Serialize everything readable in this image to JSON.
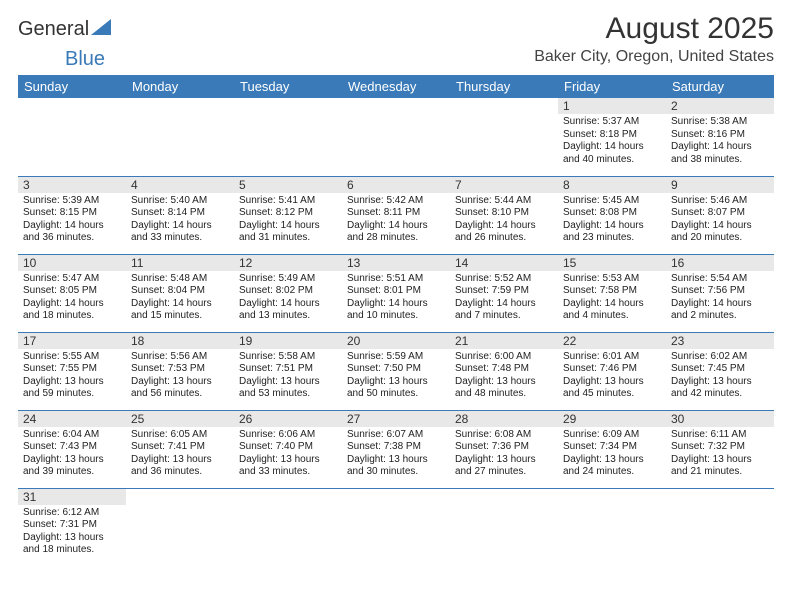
{
  "header": {
    "logo_part1": "General",
    "logo_part2": "Blue",
    "month_title": "August 2025",
    "location": "Baker City, Oregon, United States"
  },
  "colors": {
    "header_bg": "#3a7ab8",
    "header_text": "#ffffff",
    "daynum_bg": "#e8e8e8",
    "row_border": "#3a7ab8"
  },
  "weekdays": [
    "Sunday",
    "Monday",
    "Tuesday",
    "Wednesday",
    "Thursday",
    "Friday",
    "Saturday"
  ],
  "weeks": [
    [
      null,
      null,
      null,
      null,
      null,
      {
        "n": "1",
        "sr": "Sunrise: 5:37 AM",
        "ss": "Sunset: 8:18 PM",
        "dl": "Daylight: 14 hours and 40 minutes."
      },
      {
        "n": "2",
        "sr": "Sunrise: 5:38 AM",
        "ss": "Sunset: 8:16 PM",
        "dl": "Daylight: 14 hours and 38 minutes."
      }
    ],
    [
      {
        "n": "3",
        "sr": "Sunrise: 5:39 AM",
        "ss": "Sunset: 8:15 PM",
        "dl": "Daylight: 14 hours and 36 minutes."
      },
      {
        "n": "4",
        "sr": "Sunrise: 5:40 AM",
        "ss": "Sunset: 8:14 PM",
        "dl": "Daylight: 14 hours and 33 minutes."
      },
      {
        "n": "5",
        "sr": "Sunrise: 5:41 AM",
        "ss": "Sunset: 8:12 PM",
        "dl": "Daylight: 14 hours and 31 minutes."
      },
      {
        "n": "6",
        "sr": "Sunrise: 5:42 AM",
        "ss": "Sunset: 8:11 PM",
        "dl": "Daylight: 14 hours and 28 minutes."
      },
      {
        "n": "7",
        "sr": "Sunrise: 5:44 AM",
        "ss": "Sunset: 8:10 PM",
        "dl": "Daylight: 14 hours and 26 minutes."
      },
      {
        "n": "8",
        "sr": "Sunrise: 5:45 AM",
        "ss": "Sunset: 8:08 PM",
        "dl": "Daylight: 14 hours and 23 minutes."
      },
      {
        "n": "9",
        "sr": "Sunrise: 5:46 AM",
        "ss": "Sunset: 8:07 PM",
        "dl": "Daylight: 14 hours and 20 minutes."
      }
    ],
    [
      {
        "n": "10",
        "sr": "Sunrise: 5:47 AM",
        "ss": "Sunset: 8:05 PM",
        "dl": "Daylight: 14 hours and 18 minutes."
      },
      {
        "n": "11",
        "sr": "Sunrise: 5:48 AM",
        "ss": "Sunset: 8:04 PM",
        "dl": "Daylight: 14 hours and 15 minutes."
      },
      {
        "n": "12",
        "sr": "Sunrise: 5:49 AM",
        "ss": "Sunset: 8:02 PM",
        "dl": "Daylight: 14 hours and 13 minutes."
      },
      {
        "n": "13",
        "sr": "Sunrise: 5:51 AM",
        "ss": "Sunset: 8:01 PM",
        "dl": "Daylight: 14 hours and 10 minutes."
      },
      {
        "n": "14",
        "sr": "Sunrise: 5:52 AM",
        "ss": "Sunset: 7:59 PM",
        "dl": "Daylight: 14 hours and 7 minutes."
      },
      {
        "n": "15",
        "sr": "Sunrise: 5:53 AM",
        "ss": "Sunset: 7:58 PM",
        "dl": "Daylight: 14 hours and 4 minutes."
      },
      {
        "n": "16",
        "sr": "Sunrise: 5:54 AM",
        "ss": "Sunset: 7:56 PM",
        "dl": "Daylight: 14 hours and 2 minutes."
      }
    ],
    [
      {
        "n": "17",
        "sr": "Sunrise: 5:55 AM",
        "ss": "Sunset: 7:55 PM",
        "dl": "Daylight: 13 hours and 59 minutes."
      },
      {
        "n": "18",
        "sr": "Sunrise: 5:56 AM",
        "ss": "Sunset: 7:53 PM",
        "dl": "Daylight: 13 hours and 56 minutes."
      },
      {
        "n": "19",
        "sr": "Sunrise: 5:58 AM",
        "ss": "Sunset: 7:51 PM",
        "dl": "Daylight: 13 hours and 53 minutes."
      },
      {
        "n": "20",
        "sr": "Sunrise: 5:59 AM",
        "ss": "Sunset: 7:50 PM",
        "dl": "Daylight: 13 hours and 50 minutes."
      },
      {
        "n": "21",
        "sr": "Sunrise: 6:00 AM",
        "ss": "Sunset: 7:48 PM",
        "dl": "Daylight: 13 hours and 48 minutes."
      },
      {
        "n": "22",
        "sr": "Sunrise: 6:01 AM",
        "ss": "Sunset: 7:46 PM",
        "dl": "Daylight: 13 hours and 45 minutes."
      },
      {
        "n": "23",
        "sr": "Sunrise: 6:02 AM",
        "ss": "Sunset: 7:45 PM",
        "dl": "Daylight: 13 hours and 42 minutes."
      }
    ],
    [
      {
        "n": "24",
        "sr": "Sunrise: 6:04 AM",
        "ss": "Sunset: 7:43 PM",
        "dl": "Daylight: 13 hours and 39 minutes."
      },
      {
        "n": "25",
        "sr": "Sunrise: 6:05 AM",
        "ss": "Sunset: 7:41 PM",
        "dl": "Daylight: 13 hours and 36 minutes."
      },
      {
        "n": "26",
        "sr": "Sunrise: 6:06 AM",
        "ss": "Sunset: 7:40 PM",
        "dl": "Daylight: 13 hours and 33 minutes."
      },
      {
        "n": "27",
        "sr": "Sunrise: 6:07 AM",
        "ss": "Sunset: 7:38 PM",
        "dl": "Daylight: 13 hours and 30 minutes."
      },
      {
        "n": "28",
        "sr": "Sunrise: 6:08 AM",
        "ss": "Sunset: 7:36 PM",
        "dl": "Daylight: 13 hours and 27 minutes."
      },
      {
        "n": "29",
        "sr": "Sunrise: 6:09 AM",
        "ss": "Sunset: 7:34 PM",
        "dl": "Daylight: 13 hours and 24 minutes."
      },
      {
        "n": "30",
        "sr": "Sunrise: 6:11 AM",
        "ss": "Sunset: 7:32 PM",
        "dl": "Daylight: 13 hours and 21 minutes."
      }
    ],
    [
      {
        "n": "31",
        "sr": "Sunrise: 6:12 AM",
        "ss": "Sunset: 7:31 PM",
        "dl": "Daylight: 13 hours and 18 minutes."
      },
      null,
      null,
      null,
      null,
      null,
      null
    ]
  ]
}
